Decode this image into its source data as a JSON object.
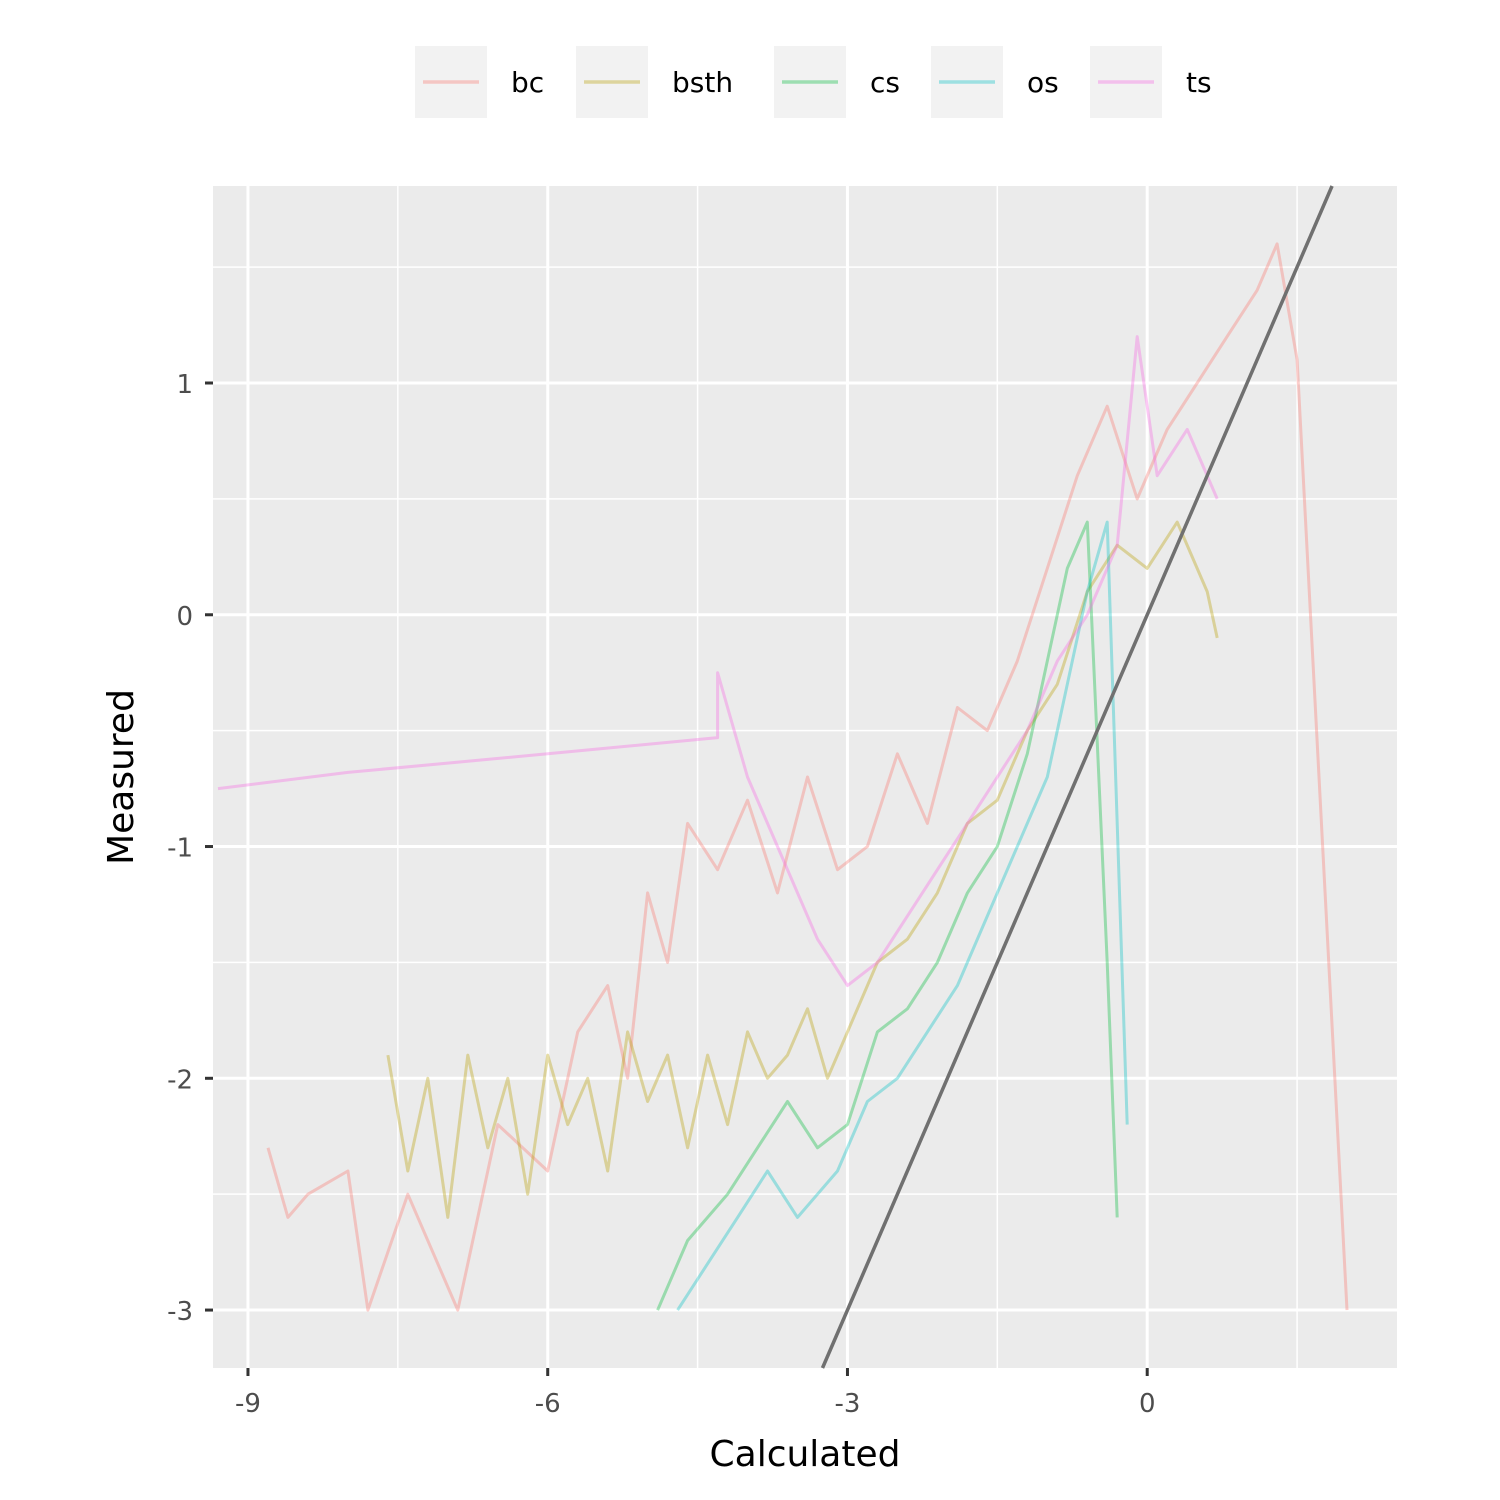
{
  "chart_data": {
    "type": "line",
    "xlabel": "Calculated",
    "ylabel": "Measured",
    "xlim": [
      -9.35,
      2.5
    ],
    "ylim": [
      -3.25,
      1.85
    ],
    "x_ticks": [
      -9,
      -6,
      -3,
      0
    ],
    "x_tick_labels": [
      "-9",
      "-6",
      "-3",
      "0"
    ],
    "y_ticks": [
      -3,
      -2,
      -1,
      0,
      1
    ],
    "y_tick_labels": [
      "-3",
      "-2",
      "-1",
      "0",
      "1"
    ],
    "grid": true,
    "legend_position": "top",
    "reference_line": {
      "slope": 1,
      "intercept": 0,
      "color": "#707070"
    },
    "series": [
      {
        "name": "bc",
        "color": "#F8766D",
        "x": [
          -8.8,
          -8.6,
          -8.4,
          -8.0,
          -7.8,
          -7.4,
          -6.9,
          -6.5,
          -6.0,
          -5.7,
          -5.4,
          -5.2,
          -5.0,
          -4.8,
          -4.6,
          -4.3,
          -4.0,
          -3.7,
          -3.4,
          -3.1,
          -2.8,
          -2.5,
          -2.2,
          -1.9,
          -1.6,
          -1.3,
          -1.0,
          -0.7,
          -0.4,
          -0.1,
          0.2,
          0.5,
          0.8,
          1.1,
          1.3,
          1.5,
          2.0
        ],
        "y": [
          -2.3,
          -2.6,
          -2.5,
          -2.4,
          -3.0,
          -2.5,
          -3.0,
          -2.2,
          -2.4,
          -1.8,
          -1.6,
          -2.0,
          -1.2,
          -1.5,
          -0.9,
          -1.1,
          -0.8,
          -1.2,
          -0.7,
          -1.1,
          -1.0,
          -0.6,
          -0.9,
          -0.4,
          -0.5,
          -0.2,
          0.2,
          0.6,
          0.9,
          0.5,
          0.8,
          1.0,
          1.2,
          1.4,
          1.6,
          1.1,
          -3.0
        ]
      },
      {
        "name": "bsth",
        "color": "#B79F00",
        "x": [
          -7.6,
          -7.4,
          -7.2,
          -7.0,
          -6.8,
          -6.6,
          -6.4,
          -6.2,
          -6.0,
          -5.8,
          -5.6,
          -5.4,
          -5.2,
          -5.0,
          -4.8,
          -4.6,
          -4.4,
          -4.2,
          -4.0,
          -3.8,
          -3.6,
          -3.4,
          -3.2,
          -3.0,
          -2.7,
          -2.4,
          -2.1,
          -1.8,
          -1.5,
          -1.2,
          -0.9,
          -0.6,
          -0.3,
          0.0,
          0.3,
          0.6,
          0.7
        ],
        "y": [
          -1.9,
          -2.4,
          -2.0,
          -2.6,
          -1.9,
          -2.3,
          -2.0,
          -2.5,
          -1.9,
          -2.2,
          -2.0,
          -2.4,
          -1.8,
          -2.1,
          -1.9,
          -2.3,
          -1.9,
          -2.2,
          -1.8,
          -2.0,
          -1.9,
          -1.7,
          -2.0,
          -1.8,
          -1.5,
          -1.4,
          -1.2,
          -0.9,
          -0.8,
          -0.5,
          -0.3,
          0.1,
          0.3,
          0.2,
          0.4,
          0.1,
          -0.1
        ]
      },
      {
        "name": "cs",
        "color": "#00BA38",
        "x": [
          -4.9,
          -4.6,
          -4.2,
          -3.9,
          -3.6,
          -3.3,
          -3.0,
          -2.7,
          -2.4,
          -2.1,
          -1.8,
          -1.5,
          -1.2,
          -1.0,
          -0.8,
          -0.6,
          -0.4,
          -0.3
        ],
        "y": [
          -3.0,
          -2.7,
          -2.5,
          -2.3,
          -2.1,
          -2.3,
          -2.2,
          -1.8,
          -1.7,
          -1.5,
          -1.2,
          -1.0,
          -0.6,
          -0.2,
          0.2,
          0.4,
          -1.5,
          -2.6
        ]
      },
      {
        "name": "os",
        "color": "#00BFC4",
        "x": [
          -4.7,
          -4.4,
          -4.1,
          -3.8,
          -3.5,
          -3.3,
          -3.1,
          -2.8,
          -2.5,
          -2.2,
          -1.9,
          -1.6,
          -1.3,
          -1.0,
          -0.8,
          -0.6,
          -0.4,
          -0.2
        ],
        "y": [
          -3.0,
          -2.8,
          -2.6,
          -2.4,
          -2.6,
          -2.5,
          -2.4,
          -2.1,
          -2.0,
          -1.8,
          -1.6,
          -1.3,
          -1.0,
          -0.7,
          -0.3,
          0.1,
          0.4,
          -2.2
        ]
      },
      {
        "name": "ts",
        "color": "#F564E3",
        "x": [
          -9.3,
          -8.0,
          -6.0,
          -4.3,
          -4.3,
          -4.0,
          -3.7,
          -3.3,
          -3.0,
          -2.7,
          -2.4,
          -2.1,
          -1.8,
          -1.5,
          -1.2,
          -0.9,
          -0.6,
          -0.3,
          -0.1,
          0.1,
          0.4,
          0.7
        ],
        "y": [
          -0.75,
          -0.68,
          -0.6,
          -0.53,
          -0.25,
          -0.7,
          -1.0,
          -1.4,
          -1.6,
          -1.5,
          -1.3,
          -1.1,
          -0.9,
          -0.7,
          -0.5,
          -0.2,
          0.0,
          0.3,
          1.2,
          0.6,
          0.8,
          0.5
        ]
      }
    ],
    "legend": [
      "bc",
      "bsth",
      "cs",
      "os",
      "ts"
    ]
  }
}
